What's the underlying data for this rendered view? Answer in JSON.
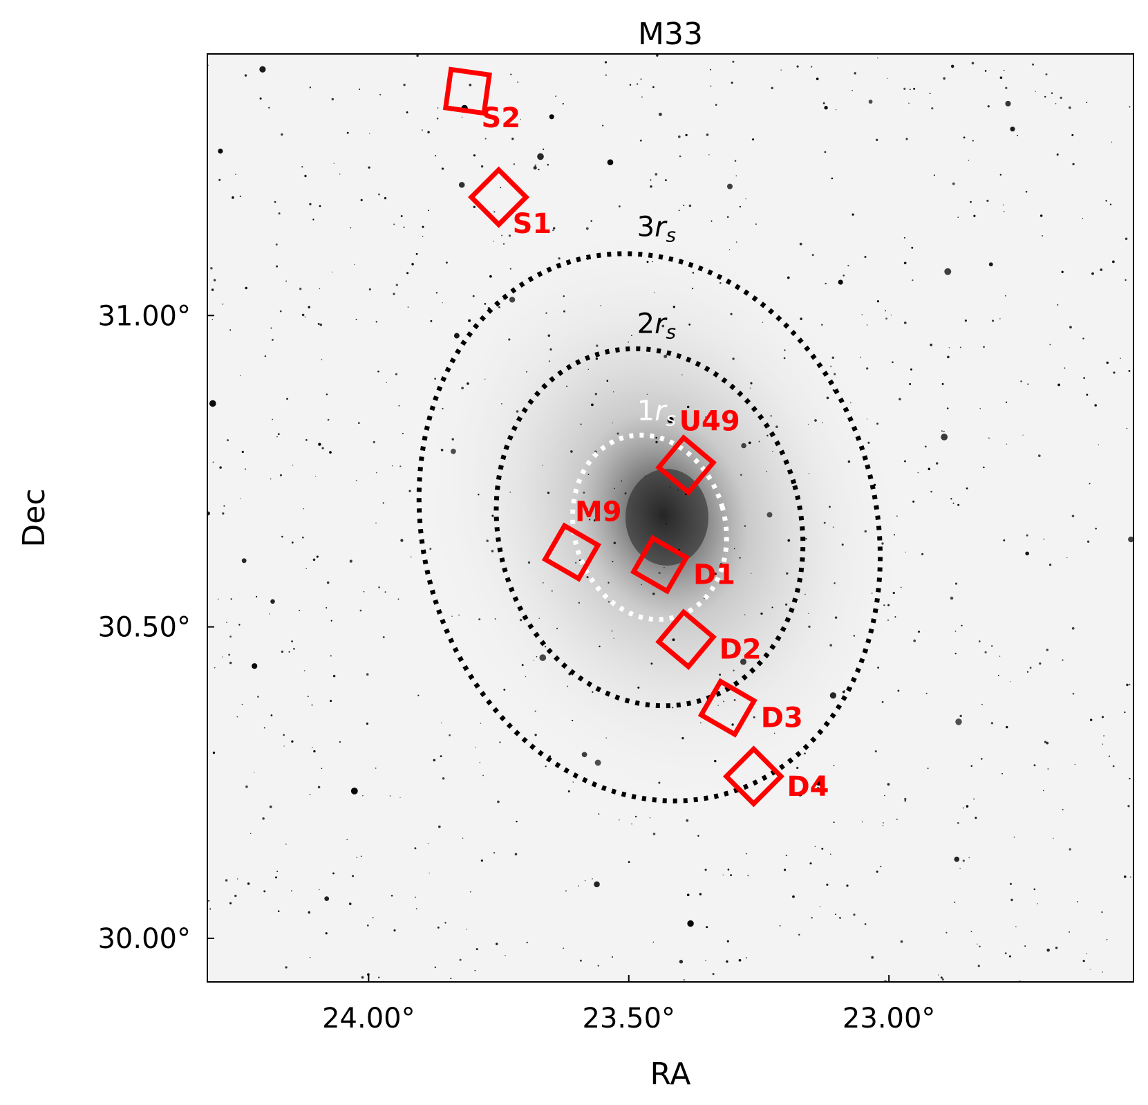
{
  "chart_data": {
    "type": "scatter",
    "title": "M33",
    "xlabel": "RA",
    "ylabel": "Dec",
    "x_axis_inverted": true,
    "xlim": [
      24.31,
      22.53
    ],
    "ylim": [
      29.93,
      31.42
    ],
    "xticks": [
      {
        "value": 24.0,
        "label": "24.00°"
      },
      {
        "value": 23.5,
        "label": "23.50°"
      },
      {
        "value": 23.0,
        "label": "23.00°"
      }
    ],
    "yticks": [
      {
        "value": 31.0,
        "label": "31.00°"
      },
      {
        "value": 30.5,
        "label": "30.50°"
      },
      {
        "value": 30.0,
        "label": "30.00°"
      }
    ],
    "background": "inverted grayscale sky image of the M33 galaxy",
    "colors": {
      "fields": "#ff0000",
      "ellipse_outer": "#000000",
      "ellipse_inner": "#ffffff"
    },
    "ellipses": [
      {
        "label_base": "1",
        "label_sub": "s",
        "ra": 23.46,
        "dec": 30.66,
        "semi_a": 0.145,
        "semi_b": 0.15,
        "color": "#ffffff"
      },
      {
        "label_base": "2",
        "label_sub": "s",
        "ra": 23.46,
        "dec": 30.66,
        "semi_a": 0.29,
        "semi_b": 0.29,
        "color": "#000000"
      },
      {
        "label_base": "3",
        "label_sub": "s",
        "ra": 23.46,
        "dec": 30.66,
        "semi_a": 0.435,
        "semi_b": 0.445,
        "color": "#000000"
      }
    ],
    "fields": [
      {
        "label": "S2",
        "ra": 23.81,
        "dec": 31.36
      },
      {
        "label": "S1",
        "ra": 23.75,
        "dec": 31.19
      },
      {
        "label": "U49",
        "ra": 23.39,
        "dec": 30.76
      },
      {
        "label": "M9",
        "ra": 23.61,
        "dec": 30.62
      },
      {
        "label": "D1",
        "ra": 23.44,
        "dec": 30.6
      },
      {
        "label": "D2",
        "ra": 23.39,
        "dec": 30.48
      },
      {
        "label": "D3",
        "ra": 23.31,
        "dec": 30.37
      },
      {
        "label": "D4",
        "ra": 23.26,
        "dec": 30.26
      }
    ]
  }
}
